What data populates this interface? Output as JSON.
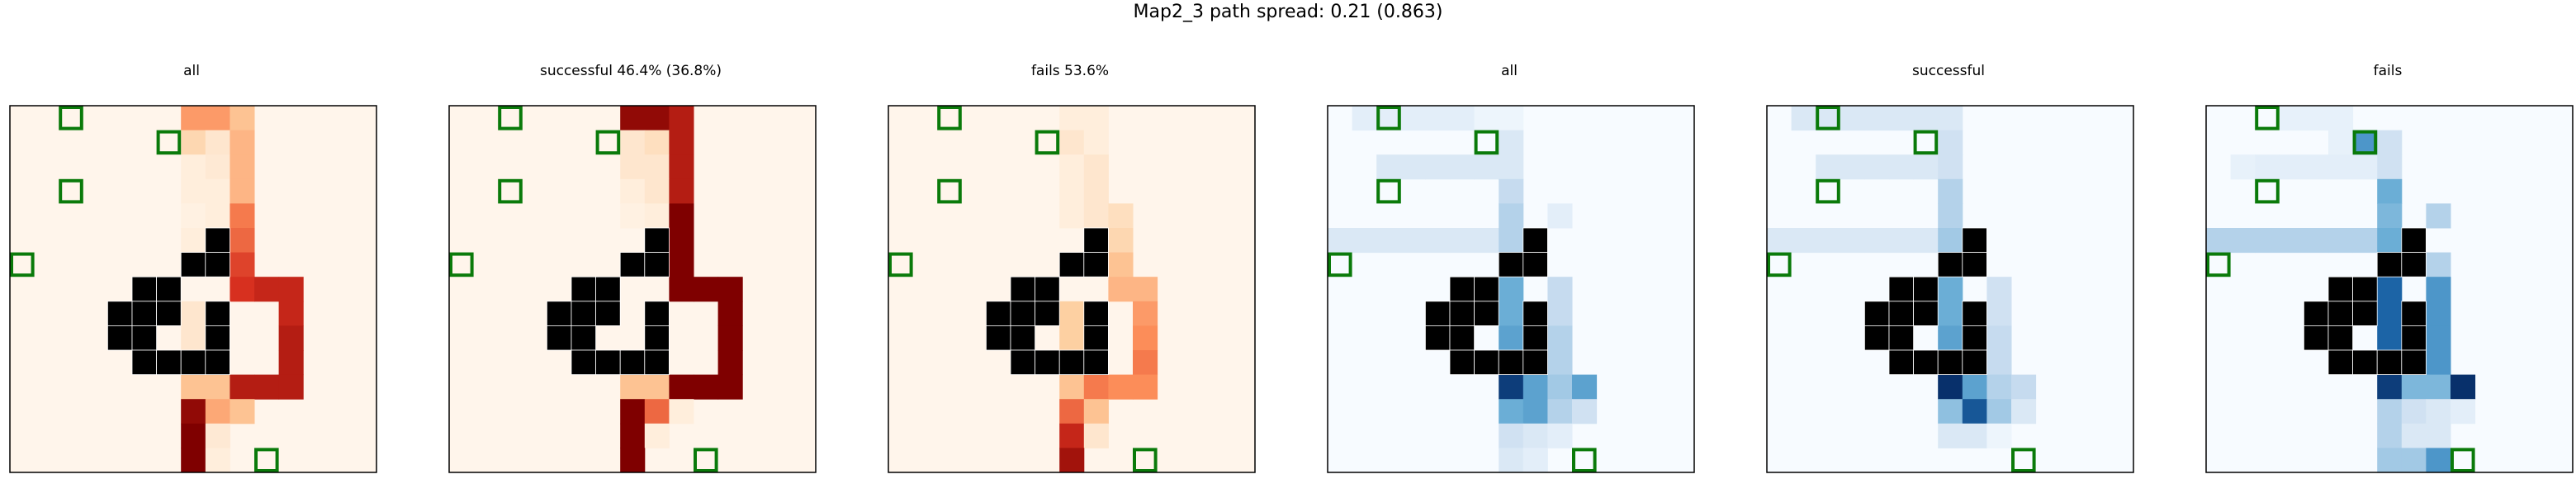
{
  "suptitle": "Map2_3 path spread: 0.21 (0.863)",
  "chart_data": {
    "type": "heatmap",
    "title": "Map2_3 path spread: 0.21 (0.863)",
    "grid_size": [
      15,
      15
    ],
    "walls": [
      [
        8,
        4
      ],
      [
        8,
        5
      ],
      [
        9,
        4
      ],
      [
        9,
        5
      ],
      [
        5,
        8
      ],
      [
        6,
        7
      ],
      [
        6,
        8
      ],
      [
        7,
        5
      ],
      [
        7,
        6
      ],
      [
        8,
        5
      ],
      [
        8,
        6
      ],
      [
        8,
        8
      ],
      [
        9,
        5
      ],
      [
        9,
        8
      ],
      [
        10,
        5
      ],
      [
        10,
        6
      ],
      [
        10,
        7
      ],
      [
        10,
        8
      ]
    ],
    "goals": [
      [
        0,
        2
      ],
      [
        1,
        6
      ],
      [
        3,
        2
      ],
      [
        6,
        0
      ],
      [
        14,
        10
      ]
    ],
    "panels": [
      {
        "title": "all",
        "colormap": "Reds",
        "cells": [
          [
            0,
            7,
            0.45
          ],
          [
            0,
            8,
            0.45
          ],
          [
            0,
            9,
            0.3
          ],
          [
            1,
            7,
            0.2
          ],
          [
            1,
            8,
            0.1
          ],
          [
            1,
            9,
            0.35
          ],
          [
            2,
            7,
            0.05
          ],
          [
            2,
            8,
            0.08
          ],
          [
            2,
            9,
            0.35
          ],
          [
            3,
            7,
            0.05
          ],
          [
            3,
            8,
            0.05
          ],
          [
            3,
            9,
            0.35
          ],
          [
            4,
            7,
            0.03
          ],
          [
            4,
            8,
            0.05
          ],
          [
            4,
            9,
            0.55
          ],
          [
            5,
            7,
            0.05
          ],
          [
            5,
            9,
            0.6
          ],
          [
            6,
            9,
            0.7
          ],
          [
            7,
            9,
            0.75
          ],
          [
            7,
            10,
            0.8
          ],
          [
            7,
            11,
            0.8
          ],
          [
            8,
            7,
            0.1
          ],
          [
            8,
            11,
            0.8
          ],
          [
            9,
            7,
            0.1
          ],
          [
            9,
            11,
            0.85
          ],
          [
            10,
            7,
            0.1
          ],
          [
            10,
            11,
            0.85
          ],
          [
            11,
            7,
            0.3
          ],
          [
            11,
            8,
            0.3
          ],
          [
            11,
            9,
            0.85
          ],
          [
            11,
            10,
            0.85
          ],
          [
            11,
            11,
            0.85
          ],
          [
            12,
            7,
            0.95
          ],
          [
            12,
            8,
            0.4
          ],
          [
            12,
            9,
            0.3
          ],
          [
            13,
            7,
            1.0
          ],
          [
            13,
            8,
            0.08
          ],
          [
            14,
            7,
            1.0
          ],
          [
            14,
            8,
            0.05
          ]
        ]
      },
      {
        "title": "successful 46.4% (36.8%)",
        "colormap": "Reds",
        "cells": [
          [
            0,
            7,
            0.95
          ],
          [
            0,
            8,
            0.95
          ],
          [
            0,
            9,
            0.85
          ],
          [
            1,
            7,
            0.1
          ],
          [
            1,
            8,
            0.15
          ],
          [
            1,
            9,
            0.85
          ],
          [
            2,
            7,
            0.1
          ],
          [
            2,
            8,
            0.1
          ],
          [
            2,
            9,
            0.85
          ],
          [
            3,
            7,
            0.05
          ],
          [
            3,
            8,
            0.1
          ],
          [
            3,
            9,
            0.85
          ],
          [
            4,
            7,
            0.03
          ],
          [
            4,
            8,
            0.05
          ],
          [
            4,
            9,
            1.0
          ],
          [
            5,
            9,
            1.0
          ],
          [
            6,
            9,
            1.0
          ],
          [
            7,
            9,
            1.0
          ],
          [
            7,
            10,
            1.0
          ],
          [
            7,
            11,
            1.0
          ],
          [
            8,
            11,
            1.0
          ],
          [
            9,
            11,
            1.0
          ],
          [
            10,
            11,
            1.0
          ],
          [
            11,
            7,
            0.3
          ],
          [
            11,
            8,
            0.3
          ],
          [
            11,
            9,
            1.0
          ],
          [
            11,
            10,
            1.0
          ],
          [
            11,
            11,
            1.0
          ],
          [
            12,
            7,
            1.0
          ],
          [
            12,
            8,
            0.6
          ],
          [
            12,
            9,
            0.05
          ],
          [
            13,
            7,
            1.0
          ],
          [
            13,
            8,
            0.05
          ],
          [
            14,
            7,
            1.0
          ]
        ]
      },
      {
        "title": "fails 53.6%",
        "colormap": "Reds",
        "cells": [
          [
            0,
            7,
            0.05
          ],
          [
            0,
            8,
            0.05
          ],
          [
            1,
            7,
            0.1
          ],
          [
            1,
            8,
            0.05
          ],
          [
            2,
            7,
            0.05
          ],
          [
            2,
            8,
            0.1
          ],
          [
            3,
            7,
            0.05
          ],
          [
            3,
            8,
            0.1
          ],
          [
            4,
            7,
            0.05
          ],
          [
            4,
            8,
            0.1
          ],
          [
            4,
            9,
            0.15
          ],
          [
            5,
            9,
            0.2
          ],
          [
            6,
            9,
            0.3
          ],
          [
            7,
            9,
            0.35
          ],
          [
            7,
            10,
            0.35
          ],
          [
            8,
            7,
            0.25
          ],
          [
            8,
            10,
            0.45
          ],
          [
            9,
            7,
            0.25
          ],
          [
            9,
            10,
            0.5
          ],
          [
            10,
            7,
            0.25
          ],
          [
            10,
            10,
            0.55
          ],
          [
            11,
            7,
            0.3
          ],
          [
            11,
            8,
            0.55
          ],
          [
            11,
            9,
            0.5
          ],
          [
            11,
            10,
            0.5
          ],
          [
            12,
            7,
            0.6
          ],
          [
            12,
            8,
            0.3
          ],
          [
            13,
            7,
            0.8
          ],
          [
            13,
            8,
            0.1
          ],
          [
            14,
            7,
            0.9
          ]
        ]
      },
      {
        "title": "all",
        "colormap": "Blues",
        "cells": [
          [
            0,
            1,
            0.1
          ],
          [
            0,
            2,
            0.1
          ],
          [
            0,
            3,
            0.1
          ],
          [
            0,
            4,
            0.1
          ],
          [
            0,
            5,
            0.1
          ],
          [
            0,
            6,
            0.05
          ],
          [
            0,
            7,
            0.05
          ],
          [
            1,
            7,
            0.15
          ],
          [
            2,
            2,
            0.15
          ],
          [
            2,
            3,
            0.15
          ],
          [
            2,
            4,
            0.15
          ],
          [
            2,
            5,
            0.15
          ],
          [
            2,
            6,
            0.15
          ],
          [
            2,
            7,
            0.15
          ],
          [
            3,
            7,
            0.25
          ],
          [
            4,
            7,
            0.3
          ],
          [
            4,
            9,
            0.1
          ],
          [
            5,
            0,
            0.15
          ],
          [
            5,
            1,
            0.15
          ],
          [
            5,
            2,
            0.15
          ],
          [
            5,
            3,
            0.15
          ],
          [
            5,
            4,
            0.15
          ],
          [
            5,
            5,
            0.15
          ],
          [
            5,
            6,
            0.15
          ],
          [
            5,
            7,
            0.3
          ],
          [
            6,
            7,
            0.4
          ],
          [
            7,
            7,
            0.5
          ],
          [
            7,
            9,
            0.25
          ],
          [
            8,
            7,
            0.5
          ],
          [
            8,
            9,
            0.25
          ],
          [
            9,
            7,
            0.55
          ],
          [
            9,
            9,
            0.3
          ],
          [
            10,
            7,
            0.65
          ],
          [
            10,
            8,
            0.25
          ],
          [
            10,
            9,
            0.3
          ],
          [
            11,
            7,
            0.95
          ],
          [
            11,
            8,
            0.55
          ],
          [
            11,
            9,
            0.35
          ],
          [
            11,
            10,
            0.55
          ],
          [
            12,
            7,
            0.5
          ],
          [
            12,
            8,
            0.55
          ],
          [
            12,
            9,
            0.3
          ],
          [
            12,
            10,
            0.2
          ],
          [
            13,
            7,
            0.2
          ],
          [
            13,
            8,
            0.15
          ],
          [
            13,
            9,
            0.1
          ],
          [
            14,
            7,
            0.15
          ],
          [
            14,
            8,
            0.1
          ]
        ]
      },
      {
        "title": "successful",
        "colormap": "Blues",
        "cells": [
          [
            0,
            1,
            0.15
          ],
          [
            0,
            2,
            0.15
          ],
          [
            0,
            3,
            0.15
          ],
          [
            0,
            4,
            0.15
          ],
          [
            0,
            5,
            0.15
          ],
          [
            0,
            6,
            0.15
          ],
          [
            0,
            7,
            0.15
          ],
          [
            1,
            7,
            0.2
          ],
          [
            2,
            2,
            0.15
          ],
          [
            2,
            3,
            0.15
          ],
          [
            2,
            4,
            0.15
          ],
          [
            2,
            5,
            0.15
          ],
          [
            2,
            6,
            0.15
          ],
          [
            2,
            7,
            0.2
          ],
          [
            3,
            7,
            0.3
          ],
          [
            4,
            7,
            0.3
          ],
          [
            5,
            0,
            0.15
          ],
          [
            5,
            1,
            0.15
          ],
          [
            5,
            2,
            0.15
          ],
          [
            5,
            3,
            0.15
          ],
          [
            5,
            4,
            0.15
          ],
          [
            5,
            5,
            0.15
          ],
          [
            5,
            6,
            0.15
          ],
          [
            5,
            7,
            0.35
          ],
          [
            6,
            7,
            0.45
          ],
          [
            7,
            7,
            0.5
          ],
          [
            7,
            9,
            0.2
          ],
          [
            8,
            7,
            0.5
          ],
          [
            8,
            9,
            0.2
          ],
          [
            9,
            7,
            0.55
          ],
          [
            9,
            9,
            0.25
          ],
          [
            10,
            7,
            0.6
          ],
          [
            10,
            8,
            0.2
          ],
          [
            10,
            9,
            0.25
          ],
          [
            11,
            7,
            1.0
          ],
          [
            11,
            8,
            0.55
          ],
          [
            11,
            9,
            0.3
          ],
          [
            11,
            10,
            0.25
          ],
          [
            12,
            7,
            0.4
          ],
          [
            12,
            8,
            0.85
          ],
          [
            12,
            9,
            0.35
          ],
          [
            12,
            10,
            0.15
          ],
          [
            13,
            7,
            0.15
          ],
          [
            13,
            8,
            0.15
          ],
          [
            13,
            9,
            0.05
          ]
        ]
      },
      {
        "title": "fails",
        "colormap": "Blues",
        "cells": [
          [
            0,
            3,
            0.08
          ],
          [
            0,
            4,
            0.08
          ],
          [
            0,
            5,
            0.08
          ],
          [
            1,
            5,
            0.08
          ],
          [
            1,
            6,
            0.6
          ],
          [
            1,
            7,
            0.2
          ],
          [
            2,
            1,
            0.08
          ],
          [
            2,
            2,
            0.1
          ],
          [
            2,
            3,
            0.1
          ],
          [
            2,
            4,
            0.1
          ],
          [
            2,
            5,
            0.1
          ],
          [
            2,
            6,
            0.1
          ],
          [
            2,
            7,
            0.2
          ],
          [
            3,
            7,
            0.5
          ],
          [
            4,
            7,
            0.45
          ],
          [
            4,
            9,
            0.3
          ],
          [
            5,
            0,
            0.3
          ],
          [
            5,
            1,
            0.3
          ],
          [
            5,
            2,
            0.3
          ],
          [
            5,
            3,
            0.3
          ],
          [
            5,
            4,
            0.3
          ],
          [
            5,
            5,
            0.3
          ],
          [
            5,
            6,
            0.3
          ],
          [
            5,
            7,
            0.5
          ],
          [
            6,
            7,
            0.55
          ],
          [
            6,
            9,
            0.3
          ],
          [
            7,
            7,
            0.8
          ],
          [
            7,
            9,
            0.6
          ],
          [
            8,
            7,
            0.8
          ],
          [
            8,
            9,
            0.6
          ],
          [
            9,
            7,
            0.8
          ],
          [
            9,
            9,
            0.6
          ],
          [
            10,
            7,
            0.8
          ],
          [
            10,
            8,
            0.45
          ],
          [
            10,
            9,
            0.6
          ],
          [
            11,
            7,
            0.95
          ],
          [
            11,
            8,
            0.45
          ],
          [
            11,
            9,
            0.45
          ],
          [
            11,
            10,
            1.0
          ],
          [
            12,
            7,
            0.3
          ],
          [
            12,
            8,
            0.2
          ],
          [
            12,
            9,
            0.15
          ],
          [
            12,
            10,
            0.1
          ],
          [
            13,
            7,
            0.3
          ],
          [
            13,
            8,
            0.15
          ],
          [
            13,
            9,
            0.15
          ],
          [
            14,
            7,
            0.35
          ],
          [
            14,
            8,
            0.35
          ],
          [
            14,
            9,
            0.6
          ]
        ]
      }
    ]
  },
  "colors": {
    "wall": "#000000",
    "goal_outline": "#0a7a0a",
    "reds_ramp": [
      "#fff5eb",
      "#fdd0a2",
      "#fc8d59",
      "#d7301f",
      "#7f0000"
    ],
    "blues_ramp": [
      "#f7fbff",
      "#c6dbef",
      "#6baed6",
      "#2171b5",
      "#08306b"
    ]
  }
}
